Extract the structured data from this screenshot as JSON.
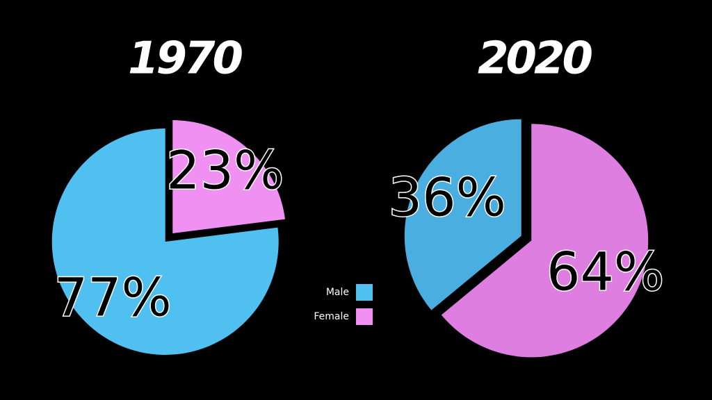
{
  "chart_data": [
    {
      "type": "pie",
      "title": "1970",
      "categories": [
        "Male",
        "Female"
      ],
      "values": [
        77,
        23
      ],
      "value_labels": [
        "77%",
        "23%"
      ],
      "colors": [
        "#4fc0ef",
        "#f090f2"
      ]
    },
    {
      "type": "pie",
      "title": "2020",
      "categories": [
        "Male",
        "Female"
      ],
      "values": [
        36,
        64
      ],
      "value_labels": [
        "36%",
        "64%"
      ],
      "colors": [
        "#4aaee0",
        "#de7ee0"
      ]
    }
  ]
}
